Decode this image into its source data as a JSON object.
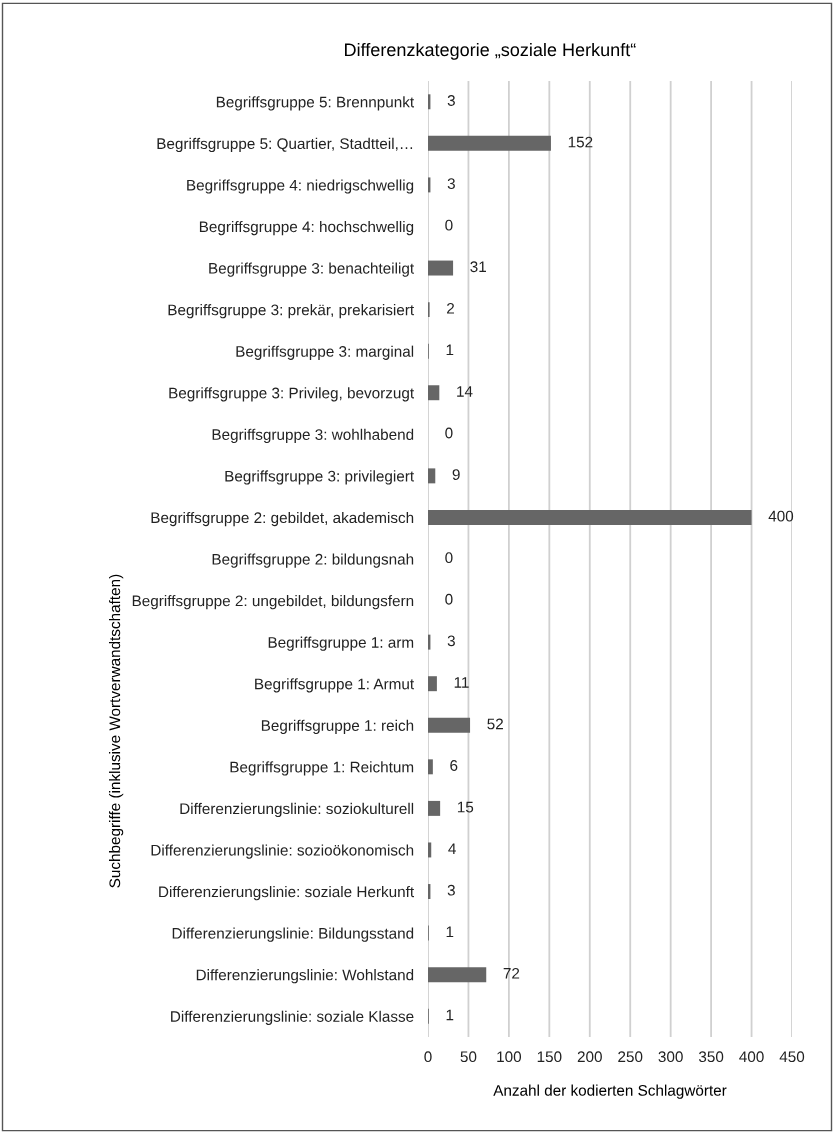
{
  "chart_data": {
    "type": "bar",
    "orientation": "horizontal",
    "title": "Differenzkategorie „soziale Herkunft“",
    "xlabel": "Anzahl der kodierten Schlagwörter",
    "ylabel": "Suchbegriffe (inklusive Wortverwandtschaften)",
    "categories": [
      "Begriffsgruppe 5: Brennpunkt",
      "Begriffsgruppe 5: Quartier, Stadtteil,…",
      "Begriffsgruppe 4: niedrigschwellig",
      "Begriffsgruppe 4: hochschwellig",
      "Begriffsgruppe 3: benachteiligt",
      "Begriffsgruppe 3: prekär, prekarisiert",
      "Begriffsgruppe 3: marginal",
      "Begriffsgruppe 3: Privileg, bevorzugt",
      "Begriffsgruppe 3: wohlhabend",
      "Begriffsgruppe 3: privilegiert",
      "Begriffsgruppe 2: gebildet, akademisch",
      "Begriffsgruppe 2: bildungsnah",
      "Begriffsgruppe 2: ungebildet, bildungsfern",
      "Begriffsgruppe 1: arm",
      "Begriffsgruppe 1: Armut",
      "Begriffsgruppe 1: reich",
      "Begriffsgruppe 1: Reichtum",
      "Differenzierungslinie: soziokulturell",
      "Differenzierungslinie: sozioökonomisch",
      "Differenzierungslinie: soziale Herkunft",
      "Differenzierungslinie: Bildungsstand",
      "Differenzierungslinie: Wohlstand",
      "Differenzierungslinie: soziale Klasse"
    ],
    "values": [
      3,
      152,
      3,
      0,
      31,
      2,
      1,
      14,
      0,
      9,
      400,
      0,
      0,
      3,
      11,
      52,
      6,
      15,
      4,
      3,
      1,
      72,
      1
    ],
    "color": "#666666",
    "data_labels": true,
    "grid": "x",
    "legend": false,
    "xlim": [
      0,
      450
    ],
    "xticks": [
      0,
      50,
      100,
      150,
      200,
      250,
      300,
      350,
      400,
      450
    ]
  }
}
